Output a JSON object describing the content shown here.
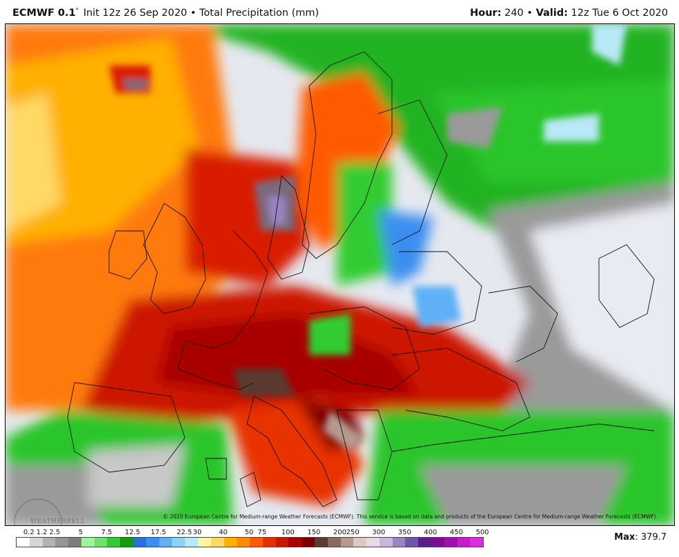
{
  "header": {
    "model": "ECMWF 0.1",
    "degree": "°",
    "init": "Init 12z 26 Sep 2020",
    "bullet": "•",
    "product": "Total Precipitation (mm)",
    "hour_label": "Hour:",
    "hour_value": "240",
    "valid_label": "Valid:",
    "valid_value": "12z Tue 6 Oct 2020"
  },
  "map": {
    "region": "Europe",
    "credit": "© 2020 European Centre for Medium-range Weather Forecasts (ECMWF). This service is based on data and products of the European Centre for Medium-range Weather Forecasts (ECMWF).",
    "watermark": "WEATHERBELL"
  },
  "legend": {
    "labels": [
      "0.2",
      "1.2",
      "2.5",
      "5",
      "7.5",
      "12.5",
      "17.5",
      "22.5",
      "30",
      "40",
      "50",
      "75",
      "100",
      "150",
      "200",
      "250",
      "300",
      "350",
      "400",
      "450",
      "500"
    ],
    "colors": [
      "#ffffff",
      "#d6d6d6",
      "#b3b3b3",
      "#969696",
      "#7d7d7d",
      "#9cf59c",
      "#6fe06f",
      "#33cc33",
      "#139c13",
      "#2e6fdc",
      "#3a8ef0",
      "#5fb0f6",
      "#8ed1f7",
      "#b9e8f7",
      "#fff59d",
      "#ffd966",
      "#ffb000",
      "#ff8c00",
      "#ff5a00",
      "#e62e00",
      "#c41a00",
      "#a80000",
      "#7a0000",
      "#5a3a32",
      "#8a6a60",
      "#b59a90",
      "#ddc8c2",
      "#ead8e6",
      "#c9b6dc",
      "#9a85c4",
      "#7056a8",
      "#5a1f87",
      "#7a0f90",
      "#a10fae",
      "#c31ec9",
      "#df2be0"
    ],
    "max_label": "Max",
    "max_value": "379.7"
  }
}
